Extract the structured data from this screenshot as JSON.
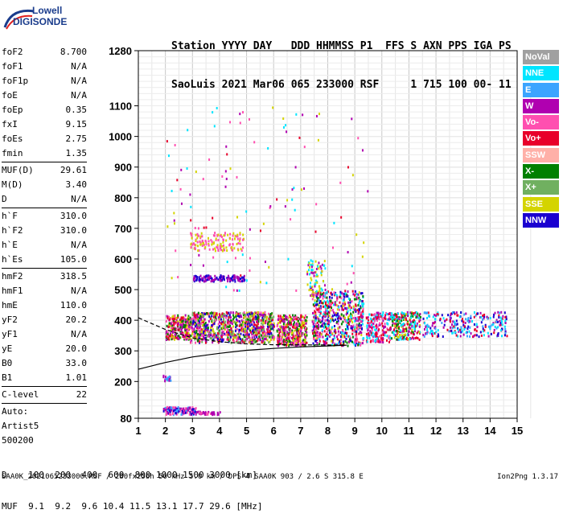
{
  "logo": {
    "line1": "Lowell",
    "line2": "DIGISONDE"
  },
  "header": {
    "row1": "Station YYYY DAY   DDD HHMMSS P1  FFS S AXN PPS IGA PS",
    "row2": "SaoLuis 2021 Mar06 065 233000 RSF     1 715 100 00- 11"
  },
  "params": {
    "group1": [
      {
        "name": "foF2",
        "value": "8.700"
      },
      {
        "name": "foF1",
        "value": "N/A"
      },
      {
        "name": "foF1p",
        "value": "N/A"
      },
      {
        "name": "foE",
        "value": "N/A"
      },
      {
        "name": "foEp",
        "value": "0.35"
      },
      {
        "name": "fxI",
        "value": "9.15"
      },
      {
        "name": "foEs",
        "value": "2.75"
      },
      {
        "name": "fmin",
        "value": "1.35"
      }
    ],
    "group2": [
      {
        "name": "MUF(D)",
        "value": "29.61"
      },
      {
        "name": "M(D)",
        "value": "3.40"
      },
      {
        "name": "D",
        "value": "N/A"
      }
    ],
    "group3": [
      {
        "name": "h`F",
        "value": "310.0"
      },
      {
        "name": "h`F2",
        "value": "310.0"
      },
      {
        "name": "h`E",
        "value": "N/A"
      },
      {
        "name": "h`Es",
        "value": "105.0"
      }
    ],
    "group4": [
      {
        "name": "hmF2",
        "value": "318.5"
      },
      {
        "name": "hmF1",
        "value": "N/A"
      },
      {
        "name": "hmE",
        "value": "110.0"
      },
      {
        "name": "yF2",
        "value": "20.2"
      },
      {
        "name": "yF1",
        "value": "N/A"
      },
      {
        "name": "yE",
        "value": "20.0"
      },
      {
        "name": "B0",
        "value": "33.0"
      },
      {
        "name": "B1",
        "value": "1.01"
      }
    ],
    "group5": [
      {
        "name": "C-level",
        "value": "22"
      }
    ],
    "auto": [
      "Auto:",
      "Artist5",
      "500200"
    ]
  },
  "legend": [
    {
      "label": "NoVal",
      "color": "#a0a0a0"
    },
    {
      "label": "NNE",
      "color": "#00e5ff"
    },
    {
      "label": "E",
      "color": "#3ba4ff"
    },
    {
      "label": "W",
      "color": "#b000b0"
    },
    {
      "label": "Vo-",
      "color": "#ff4fb0"
    },
    {
      "label": "Vo+",
      "color": "#e8002a"
    },
    {
      "label": "SSW",
      "color": "#ffb0a8"
    },
    {
      "label": "X-",
      "color": "#008000"
    },
    {
      "label": "X+",
      "color": "#70b060"
    },
    {
      "label": "SSE",
      "color": "#d4d400"
    },
    {
      "label": "NNW",
      "color": "#1a00d0"
    }
  ],
  "chart_data": {
    "type": "scatter",
    "xlim": [
      1,
      15
    ],
    "ylim": [
      80,
      1280
    ],
    "x_ticks": [
      1,
      2,
      3,
      4,
      5,
      6,
      7,
      8,
      9,
      10,
      11,
      12,
      13,
      14,
      15
    ],
    "y_ticks": [
      80,
      200,
      300,
      400,
      500,
      600,
      700,
      800,
      900,
      1000,
      1100,
      1280
    ],
    "grid": true,
    "clusters": [
      {
        "x": [
          2.0,
          2.9
        ],
        "y": [
          340,
          420
        ],
        "n": 260,
        "colors": [
          "#e8002a",
          "#ff4fb0",
          "#b000b0",
          "#d4d400",
          "#008000"
        ]
      },
      {
        "x": [
          2.9,
          6.0
        ],
        "y": [
          330,
          430
        ],
        "n": 900,
        "colors": [
          "#e8002a",
          "#ff4fb0",
          "#b000b0",
          "#d4d400",
          "#008000",
          "#70b060",
          "#1a00d0"
        ]
      },
      {
        "x": [
          6.1,
          7.2
        ],
        "y": [
          320,
          420
        ],
        "n": 380,
        "colors": [
          "#e8002a",
          "#ff4fb0",
          "#b000b0",
          "#d4d400",
          "#008000"
        ]
      },
      {
        "x": [
          7.4,
          9.3
        ],
        "y": [
          320,
          500
        ],
        "n": 650,
        "colors": [
          "#e8002a",
          "#ff4fb0",
          "#b000b0",
          "#d4d400",
          "#008000",
          "#1a00d0",
          "#00e5ff"
        ]
      },
      {
        "x": [
          9.4,
          10.3
        ],
        "y": [
          330,
          430
        ],
        "n": 200,
        "colors": [
          "#b000b0",
          "#e8002a",
          "#00e5ff",
          "#ff4fb0"
        ]
      },
      {
        "x": [
          10.3,
          11.4
        ],
        "y": [
          340,
          430
        ],
        "n": 240,
        "colors": [
          "#d4d400",
          "#e8002a",
          "#b000b0",
          "#00e5ff",
          "#008000"
        ]
      },
      {
        "x": [
          11.5,
          14.6
        ],
        "y": [
          350,
          430
        ],
        "n": 260,
        "colors": [
          "#00e5ff",
          "#3ba4ff",
          "#1a00d0",
          "#b000b0",
          "#e8002a"
        ]
      },
      {
        "x": [
          3.0,
          4.9
        ],
        "y": [
          530,
          550
        ],
        "n": 130,
        "colors": [
          "#b000b0",
          "#1a00d0"
        ]
      },
      {
        "x": [
          2.9,
          4.9
        ],
        "y": [
          630,
          690
        ],
        "n": 140,
        "colors": [
          "#d4d400",
          "#ff4fb0"
        ]
      },
      {
        "x": [
          1.9,
          3.1
        ],
        "y": [
          95,
          120
        ],
        "n": 140,
        "colors": [
          "#1a00d0",
          "#b000b0",
          "#3ba4ff",
          "#ff4fb0"
        ]
      },
      {
        "x": [
          3.1,
          4.0
        ],
        "y": [
          95,
          105
        ],
        "n": 40,
        "colors": [
          "#b000b0",
          "#ff4fb0"
        ]
      },
      {
        "x": [
          1.9,
          2.2
        ],
        "y": [
          205,
          225
        ],
        "n": 20,
        "colors": [
          "#b000b0",
          "#3ba4ff"
        ]
      },
      {
        "x": [
          2.0,
          9.5
        ],
        "y": [
          500,
          1100
        ],
        "n": 120,
        "colors": [
          "#e8002a",
          "#b000b0",
          "#d4d400",
          "#00e5ff",
          "#ff4fb0"
        ]
      },
      {
        "x": [
          7.2,
          7.9
        ],
        "y": [
          480,
          600
        ],
        "n": 80,
        "colors": [
          "#d4d400",
          "#00e5ff",
          "#b000b0"
        ]
      }
    ],
    "profile_solid": [
      [
        1.0,
        240
      ],
      [
        2.0,
        262
      ],
      [
        3.0,
        280
      ],
      [
        4.0,
        292
      ],
      [
        5.0,
        302
      ],
      [
        6.0,
        308
      ],
      [
        7.0,
        313
      ],
      [
        8.0,
        316
      ],
      [
        8.7,
        318.5
      ]
    ],
    "profile_dashed": [
      [
        1.0,
        408
      ],
      [
        2.0,
        370
      ],
      [
        3.0,
        342
      ],
      [
        4.0,
        330
      ],
      [
        5.0,
        323
      ],
      [
        6.0,
        320
      ],
      [
        8.7,
        319
      ]
    ]
  },
  "bottom": {
    "row1": "D    100  200  400  600  800 1000 1500 3000 [km]",
    "row2": "MUF  9.1  9.2  9.6 10.4 11.5 13.1 17.7 29.6 [MHz]"
  },
  "footer": "SAA0K_2021065233000.RSF / 280fx256h 50 kHz 5.0 km / DPS-4 SAA0K 903 / 2.6 S 315.8 E",
  "version": "Ion2Png 1.3.17"
}
